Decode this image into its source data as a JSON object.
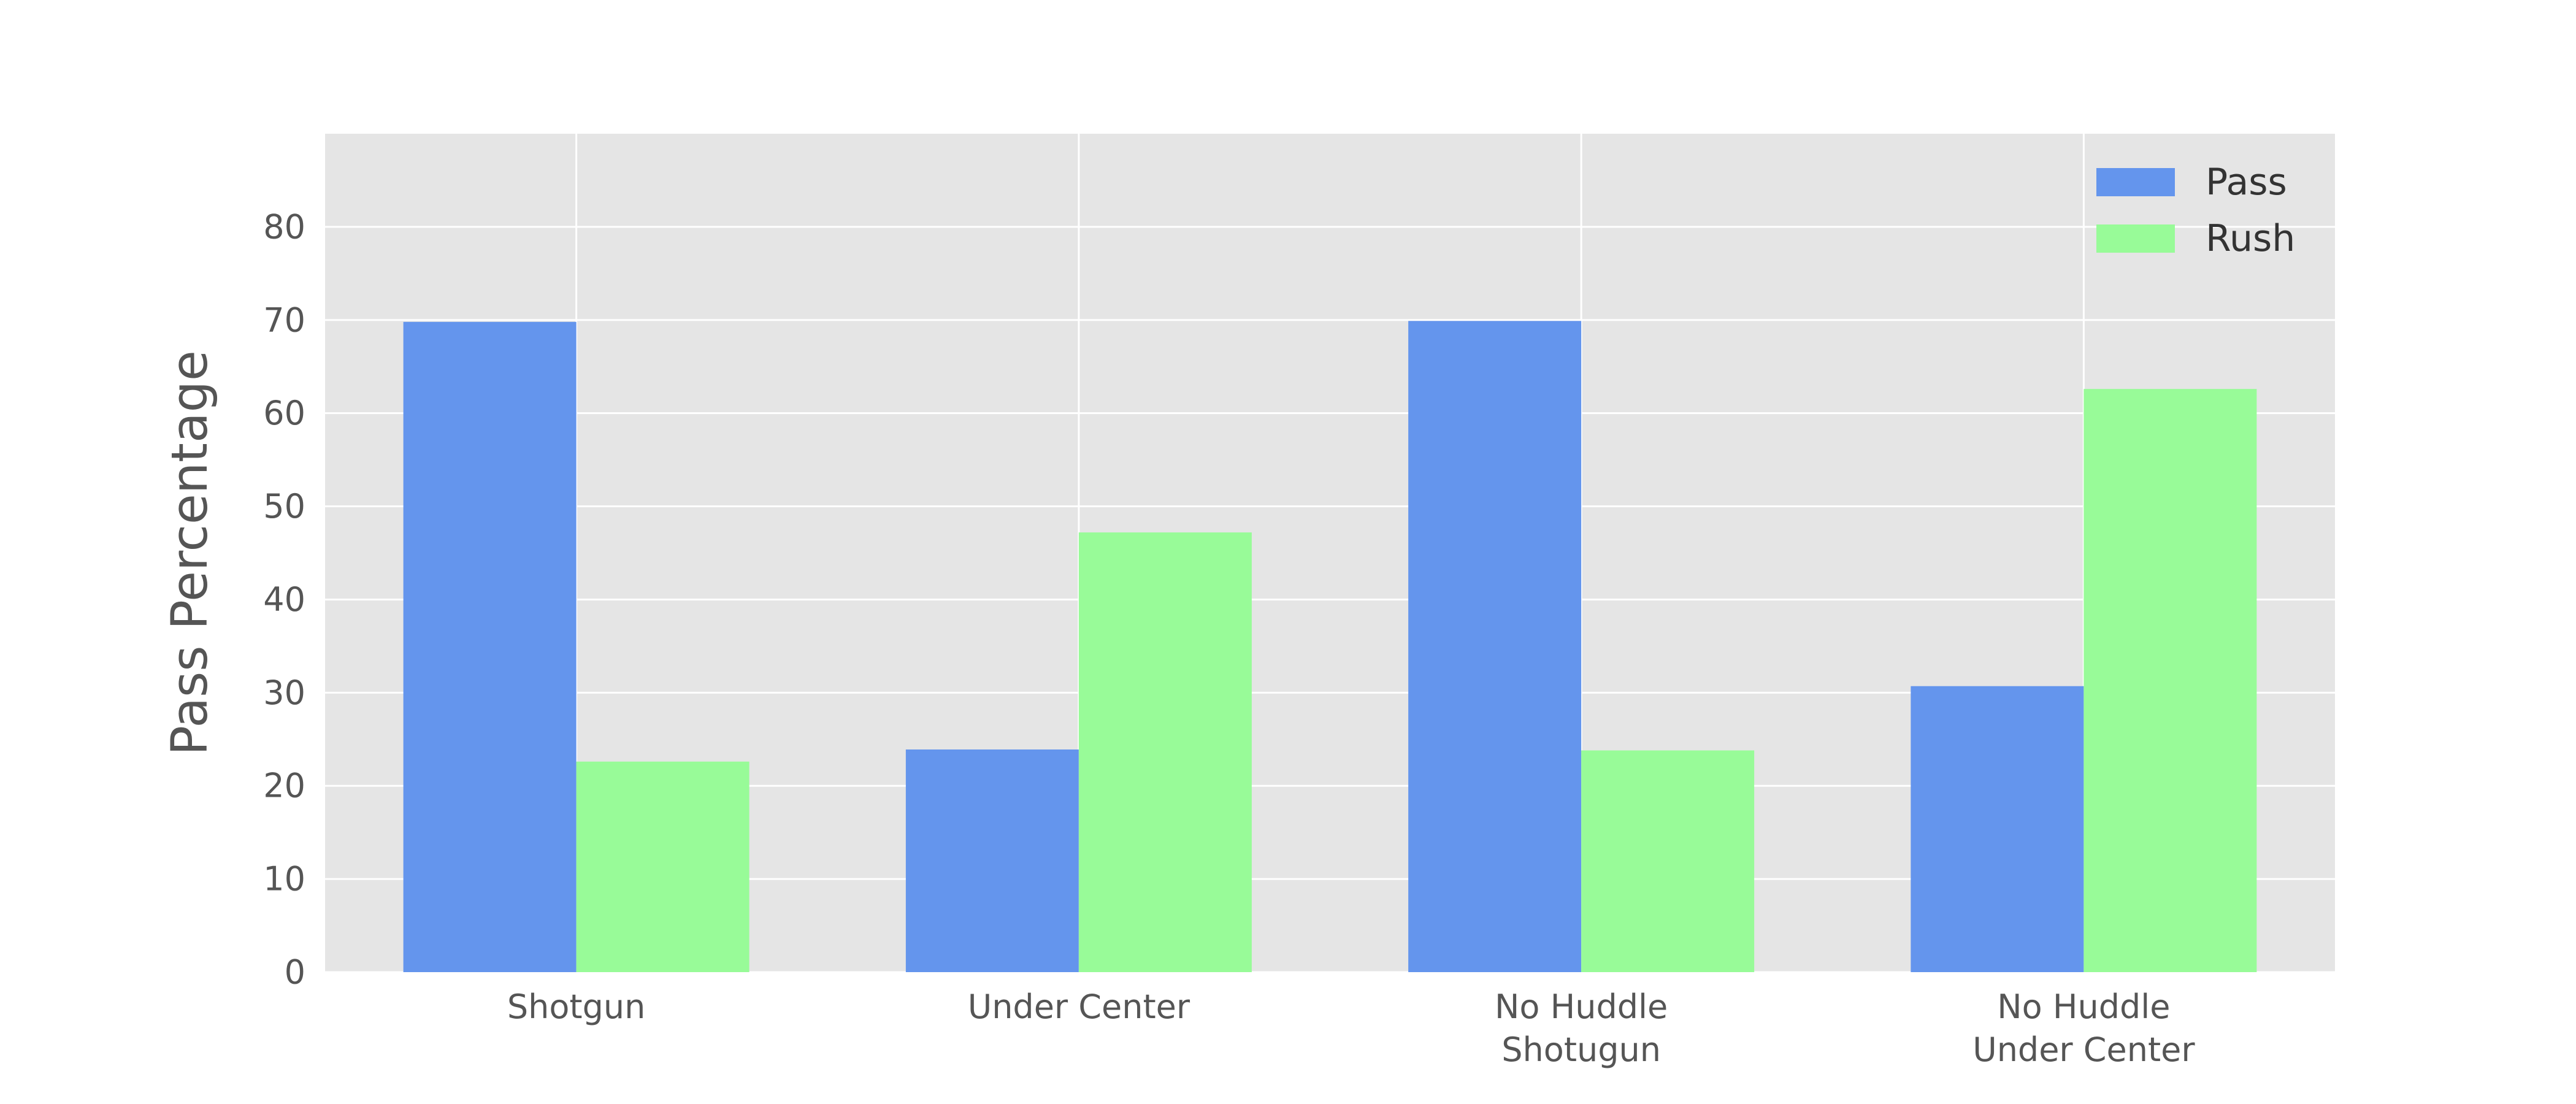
{
  "chart_data": {
    "type": "bar",
    "categories": [
      [
        "Shotgun"
      ],
      [
        "Under Center"
      ],
      [
        "No Huddle",
        "Shotugun"
      ],
      [
        "No Huddle",
        "Under Center"
      ]
    ],
    "series": [
      {
        "name": "Pass",
        "values": [
          69.8,
          23.9,
          69.9,
          30.7
        ],
        "color": "#6495ed"
      },
      {
        "name": "Rush",
        "values": [
          22.6,
          47.2,
          23.8,
          62.6
        ],
        "color": "#98fb98"
      }
    ],
    "title": "",
    "xlabel": "",
    "ylabel": "Pass Percentage",
    "ylim": [
      0,
      90
    ],
    "yticks": [
      0,
      10,
      20,
      30,
      40,
      50,
      60,
      70,
      80
    ],
    "grid": true,
    "legend_position": "top-right",
    "colors": {
      "plot_background": "#e5e5e5",
      "grid": "#ffffff",
      "text": "#555555"
    }
  }
}
